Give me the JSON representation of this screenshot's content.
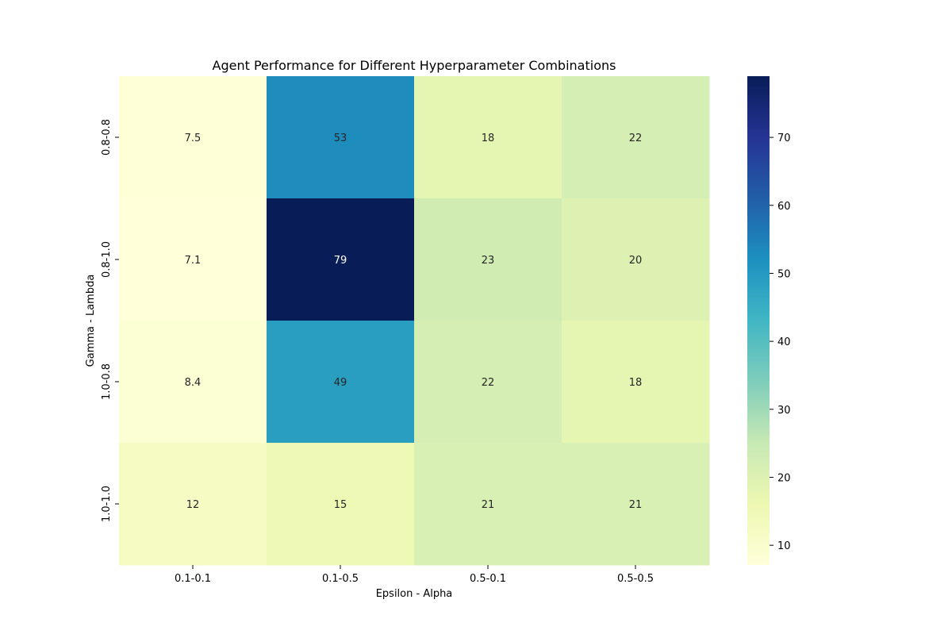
{
  "chart_data": {
    "type": "heatmap",
    "title": "Agent Performance for Different Hyperparameter Combinations",
    "xlabel": "Epsilon - Alpha",
    "ylabel": "Gamma - Lambda",
    "x_categories": [
      "0.1-0.1",
      "0.1-0.5",
      "0.5-0.1",
      "0.5-0.5"
    ],
    "y_categories": [
      "0.8-0.8",
      "0.8-1.0",
      "1.0-0.8",
      "1.0-1.0"
    ],
    "values": [
      [
        7.5,
        53,
        18,
        22
      ],
      [
        7.1,
        79,
        23,
        20
      ],
      [
        8.4,
        49,
        22,
        18
      ],
      [
        12,
        15,
        21,
        21
      ]
    ],
    "value_labels": [
      [
        "7.5",
        "53",
        "18",
        "22"
      ],
      [
        "7.1",
        "79",
        "23",
        "20"
      ],
      [
        "8.4",
        "49",
        "22",
        "18"
      ],
      [
        "12",
        "15",
        "21",
        "21"
      ]
    ],
    "colormap": "YlGnBu",
    "colorbar": {
      "min": 7.1,
      "max": 79,
      "ticks": [
        10,
        20,
        30,
        40,
        50,
        60,
        70
      ],
      "tick_labels": [
        "10",
        "20",
        "30",
        "40",
        "50",
        "60",
        "70"
      ]
    },
    "grid": false,
    "colors": {
      "dark_text": "#262626",
      "light_text": "#ffffff"
    }
  }
}
